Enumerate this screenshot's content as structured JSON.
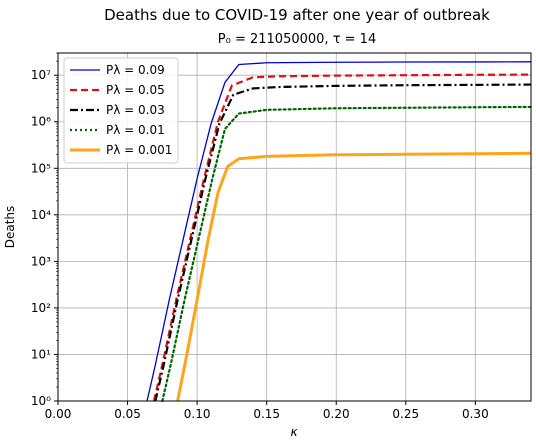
{
  "chart_data": {
    "type": "line",
    "title": "Deaths due to COVID-19 after one year of outbreak",
    "subtitle": "P₀ = 211050000, τ = 14",
    "xlabel": "κ",
    "ylabel": "Deaths",
    "xlim": [
      0.0,
      0.34
    ],
    "ylim": [
      1,
      30000000
    ],
    "yscale": "log",
    "grid": true,
    "legend_position": "top-left",
    "x_ticks": [
      "0.00",
      "0.05",
      "0.10",
      "0.15",
      "0.20",
      "0.25",
      "0.30"
    ],
    "y_ticks": [
      "10⁰",
      "10¹",
      "10²",
      "10³",
      "10⁴",
      "10⁵",
      "10⁶",
      "10⁷"
    ],
    "series": [
      {
        "name": "Pλ = 0.09",
        "color": "#0000cc",
        "style": "solid",
        "width": 1.3,
        "points": [
          [
            0.064,
            1
          ],
          [
            0.07,
            6
          ],
          [
            0.08,
            150
          ],
          [
            0.09,
            3000
          ],
          [
            0.1,
            60000
          ],
          [
            0.11,
            900000
          ],
          [
            0.12,
            7000000
          ],
          [
            0.13,
            17000000
          ],
          [
            0.15,
            18500000
          ],
          [
            0.2,
            19000000
          ],
          [
            0.25,
            19200000
          ],
          [
            0.3,
            19300000
          ],
          [
            0.34,
            19400000
          ]
        ]
      },
      {
        "name": "Pλ = 0.05",
        "color": "#dd1111",
        "style": "dashed",
        "width": 2.2,
        "points": [
          [
            0.069,
            1
          ],
          [
            0.075,
            6
          ],
          [
            0.085,
            150
          ],
          [
            0.095,
            3000
          ],
          [
            0.105,
            60000
          ],
          [
            0.115,
            1000000
          ],
          [
            0.125,
            6000000
          ],
          [
            0.14,
            9000000
          ],
          [
            0.16,
            9500000
          ],
          [
            0.2,
            9800000
          ],
          [
            0.25,
            10000000
          ],
          [
            0.3,
            10200000
          ],
          [
            0.34,
            10300000
          ]
        ]
      },
      {
        "name": "Pλ = 0.03",
        "color": "#000000",
        "style": "dashdot",
        "width": 2.2,
        "points": [
          [
            0.07,
            1
          ],
          [
            0.076,
            6
          ],
          [
            0.086,
            150
          ],
          [
            0.096,
            3000
          ],
          [
            0.106,
            60000
          ],
          [
            0.116,
            900000
          ],
          [
            0.126,
            3800000
          ],
          [
            0.14,
            5200000
          ],
          [
            0.16,
            5600000
          ],
          [
            0.2,
            5900000
          ],
          [
            0.25,
            6100000
          ],
          [
            0.3,
            6200000
          ],
          [
            0.34,
            6300000
          ]
        ]
      },
      {
        "name": "Pλ = 0.01",
        "color": "#006400",
        "style": "dotted",
        "width": 2.2,
        "points": [
          [
            0.075,
            1
          ],
          [
            0.081,
            6
          ],
          [
            0.091,
            150
          ],
          [
            0.101,
            3000
          ],
          [
            0.111,
            60000
          ],
          [
            0.12,
            700000
          ],
          [
            0.13,
            1500000
          ],
          [
            0.15,
            1800000
          ],
          [
            0.2,
            1950000
          ],
          [
            0.25,
            2000000
          ],
          [
            0.3,
            2050000
          ],
          [
            0.34,
            2080000
          ]
        ]
      },
      {
        "name": "Pλ = 0.001",
        "color": "#ffa31a",
        "style": "solid",
        "width": 3.0,
        "points": [
          [
            0.086,
            1
          ],
          [
            0.092,
            8
          ],
          [
            0.1,
            150
          ],
          [
            0.108,
            3000
          ],
          [
            0.115,
            30000
          ],
          [
            0.122,
            110000
          ],
          [
            0.13,
            160000
          ],
          [
            0.15,
            180000
          ],
          [
            0.2,
            195000
          ],
          [
            0.25,
            200000
          ],
          [
            0.3,
            205000
          ],
          [
            0.34,
            210000
          ]
        ]
      }
    ]
  }
}
